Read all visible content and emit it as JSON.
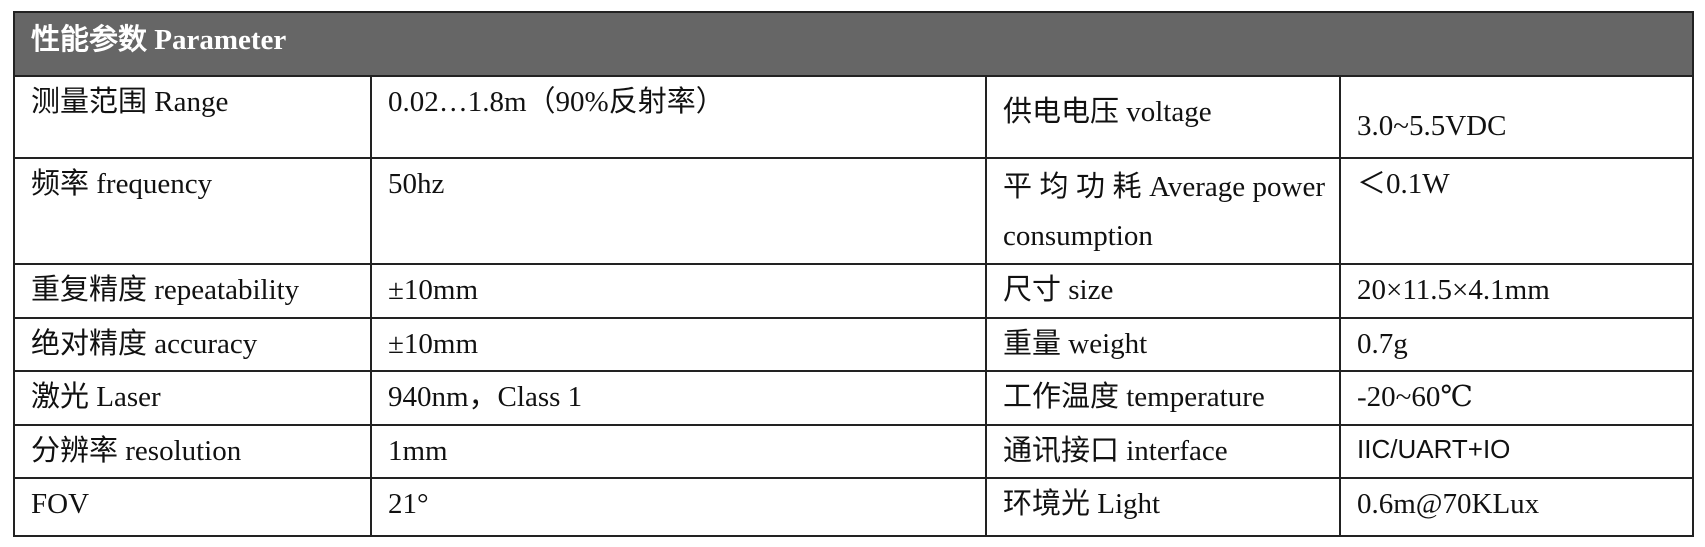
{
  "title": "性能参数 Parameter",
  "rows": [
    {
      "l1": "测量范围 Range",
      "v1": "0.02…1.8m（90%反射率）",
      "l2": "供电电压 voltage",
      "v2": "3.0~5.5VDC"
    },
    {
      "l1": "频率 frequency",
      "v1": "50hz",
      "l2": "平 均 功 耗 Average power consumption",
      "v2": "＜0.1W"
    },
    {
      "l1": "重复精度 repeatability",
      "v1": "±10mm",
      "l2": "尺寸 size",
      "v2": "20×11.5×4.1mm"
    },
    {
      "l1": "绝对精度 accuracy",
      "v1": "±10mm",
      "l2": "重量 weight",
      "v2": "0.7g"
    },
    {
      "l1": "激光 Laser",
      "v1": "940nm，Class 1",
      "l2": "工作温度 temperature",
      "v2": "-20~60℃"
    },
    {
      "l1": "分辨率 resolution",
      "v1": "1mm",
      "l2": "通讯接口 interface",
      "v2": "IIC/UART+IO"
    },
    {
      "l1": "FOV",
      "v1": "21°",
      "l2": "环境光 Light",
      "v2": "0.6m@70KLux"
    }
  ]
}
